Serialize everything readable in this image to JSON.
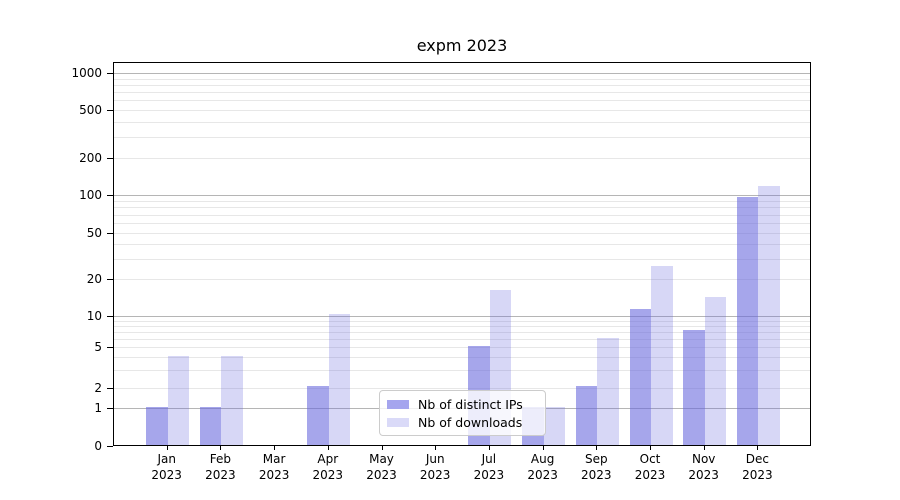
{
  "chart_data": {
    "type": "bar",
    "title": "expm 2023",
    "categories": [
      "Jan 2023",
      "Feb 2023",
      "Mar 2023",
      "Apr 2023",
      "May 2023",
      "Jun 2023",
      "Jul 2023",
      "Aug 2023",
      "Sep 2023",
      "Oct 2023",
      "Nov 2023",
      "Dec 2023"
    ],
    "series": [
      {
        "name": "Nb of distinct IPs",
        "values": [
          1,
          1,
          0,
          2,
          0,
          0,
          5,
          1,
          2,
          11,
          7,
          95
        ]
      },
      {
        "name": "Nb of downloads",
        "values": [
          4,
          4,
          0,
          10,
          0,
          0,
          16,
          1,
          6,
          25,
          14,
          115
        ]
      }
    ],
    "yscale": "symlog",
    "yticks": [
      0,
      1,
      2,
      5,
      10,
      20,
      50,
      100,
      200,
      500,
      1000
    ],
    "ylim": [
      0,
      1200
    ],
    "grid": true,
    "legend_position": "inside lower-center"
  },
  "colors": {
    "ips_bar": "rgba(102,102,221,0.58)",
    "downloads_bar": "rgba(102,102,221,0.26)",
    "ips_swatch": "#a5a5ee",
    "downloads_swatch": "#dadaf8",
    "grid_major": "#b5b5b5",
    "grid_minor": "#e7e7e7",
    "axis": "#000000",
    "legend_border": "#cccccc",
    "legend_bg": "rgba(255,255,255,0.8)",
    "text": "#000000"
  }
}
